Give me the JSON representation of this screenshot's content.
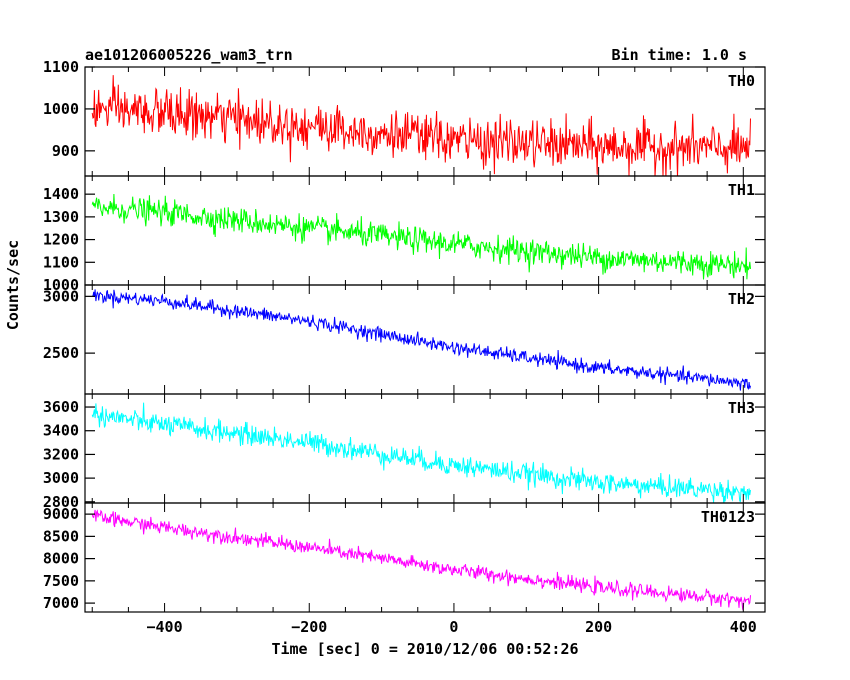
{
  "header": {
    "title": "ae101206005226_wam3_trn",
    "bin_time": "Bin time: 1.0 s"
  },
  "chart_data": {
    "type": "line",
    "title": "ae101206005226_wam3_trn",
    "subtitle": "Bin time: 1.0 s",
    "xlabel": "Time [sec] 0 = 2010/12/06 00:52:26",
    "ylabel": "Counts/sec",
    "xlim": [
      -510,
      430
    ],
    "x_ticks": [
      -400,
      -200,
      0,
      200,
      400
    ],
    "x_data_range": [
      -500,
      410
    ],
    "grid": false,
    "panels": [
      {
        "name": "TH0",
        "color": "#ff0000",
        "ylim": [
          840,
          1100
        ],
        "y_ticks": [
          900,
          1000,
          1100
        ],
        "trend": {
          "x": [
            -500,
            -400,
            -200,
            0,
            200,
            410
          ],
          "y": [
            1000,
            990,
            960,
            925,
            910,
            905
          ]
        },
        "noise_sd": 28
      },
      {
        "name": "TH1",
        "color": "#00ff00",
        "ylim": [
          1000,
          1480
        ],
        "y_ticks": [
          1000,
          1100,
          1200,
          1300,
          1400
        ],
        "trend": {
          "x": [
            -500,
            -400,
            -200,
            0,
            200,
            410
          ],
          "y": [
            1345,
            1320,
            1250,
            1180,
            1120,
            1085
          ]
        },
        "noise_sd": 28
      },
      {
        "name": "TH2",
        "color": "#0000ff",
        "ylim": [
          2140,
          3100
        ],
        "y_ticks": [
          2500,
          3000
        ],
        "trend": {
          "x": [
            -500,
            -400,
            -200,
            0,
            200,
            410
          ],
          "y": [
            3010,
            2960,
            2780,
            2550,
            2370,
            2230
          ]
        },
        "noise_sd": 30
      },
      {
        "name": "TH3",
        "color": "#00ffff",
        "ylim": [
          2790,
          3710
        ],
        "y_ticks": [
          2800,
          3000,
          3200,
          3400,
          3600
        ],
        "trend": {
          "x": [
            -500,
            -400,
            -200,
            0,
            200,
            410
          ],
          "y": [
            3540,
            3450,
            3300,
            3110,
            2960,
            2880
          ]
        },
        "noise_sd": 45
      },
      {
        "name": "TH0123",
        "color": "#ff00ff",
        "ylim": [
          6800,
          9250
        ],
        "y_ticks": [
          7000,
          7500,
          8000,
          8500,
          9000
        ],
        "trend": {
          "x": [
            -500,
            -400,
            -200,
            0,
            200,
            410
          ],
          "y": [
            8950,
            8700,
            8250,
            7750,
            7350,
            7050
          ]
        },
        "noise_sd": 80
      }
    ]
  }
}
